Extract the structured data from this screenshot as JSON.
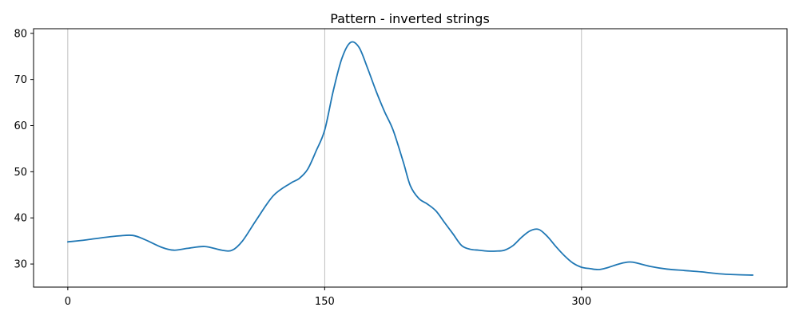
{
  "chart_data": {
    "type": "line",
    "title": "Pattern - inverted strings",
    "xlabel": "",
    "ylabel": "",
    "xlim": [
      -20,
      420
    ],
    "ylim": [
      25,
      81
    ],
    "xticks": [
      0,
      150,
      300
    ],
    "yticks": [
      30,
      40,
      50,
      60,
      70,
      80
    ],
    "grid": "x-only",
    "colors": {
      "series": "#1f77b4",
      "grid": "#b0b0b0"
    },
    "series": [
      {
        "x": [
          0,
          10,
          20,
          30,
          38,
          45,
          55,
          62,
          70,
          80,
          90,
          96,
          102,
          110,
          120,
          130,
          135,
          140,
          145,
          150,
          155,
          160,
          165,
          170,
          175,
          180,
          185,
          190,
          196,
          200,
          205,
          210,
          215,
          220,
          225,
          230,
          235,
          240,
          245,
          250,
          255,
          260,
          265,
          270,
          275,
          280,
          285,
          290,
          295,
          300,
          305,
          310,
          315,
          320,
          325,
          330,
          340,
          350,
          360,
          370,
          380,
          390,
          400
        ],
        "y": [
          34.8,
          35.2,
          35.7,
          36.1,
          36.2,
          35.3,
          33.6,
          33.0,
          33.4,
          33.8,
          33.0,
          33.0,
          35.0,
          39.5,
          44.8,
          47.5,
          48.5,
          50.5,
          54.5,
          59.0,
          67.5,
          74.5,
          78.0,
          77.0,
          72.5,
          67.5,
          63.0,
          59.0,
          52.0,
          47.0,
          44.2,
          43.0,
          41.5,
          39.0,
          36.5,
          34.0,
          33.2,
          33.0,
          32.8,
          32.8,
          33.0,
          34.0,
          35.8,
          37.2,
          37.5,
          36.0,
          33.8,
          31.8,
          30.2,
          29.3,
          29.0,
          28.8,
          29.2,
          29.8,
          30.3,
          30.4,
          29.5,
          28.9,
          28.6,
          28.3,
          27.9,
          27.7,
          27.6
        ]
      }
    ]
  }
}
